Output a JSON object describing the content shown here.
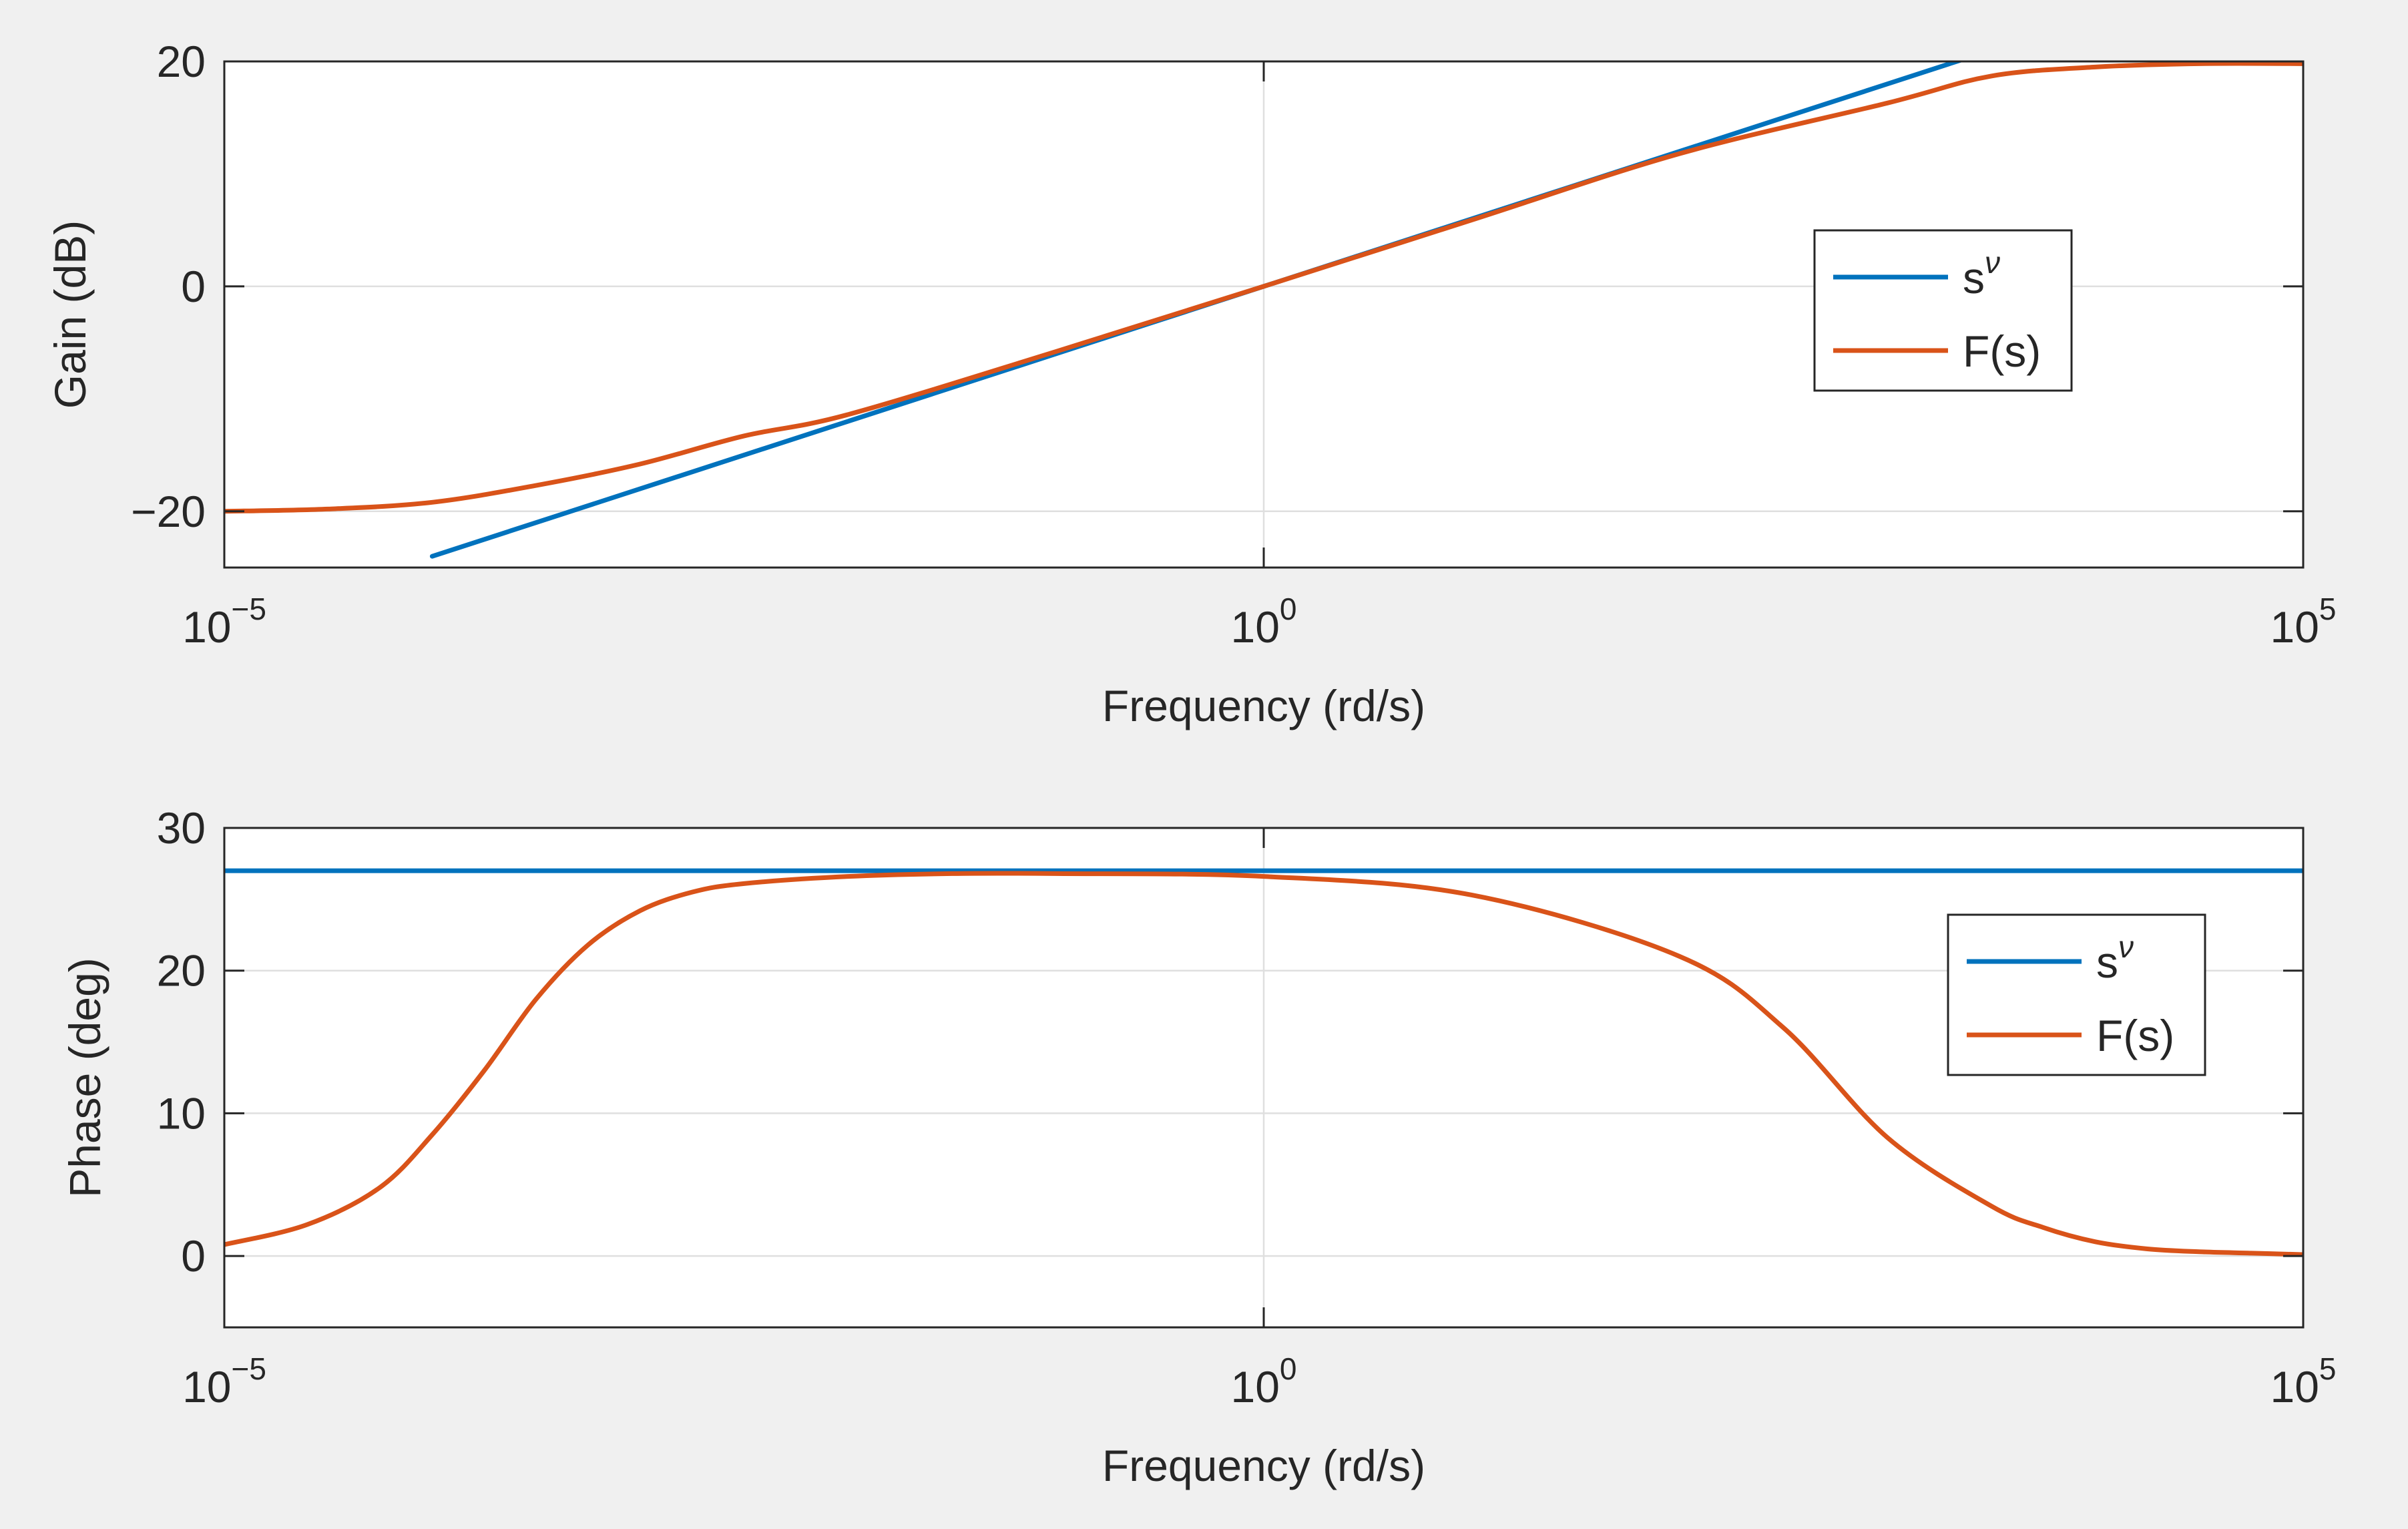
{
  "chart_data": [
    {
      "type": "line",
      "xlabel": "Frequency (rd/s)",
      "ylabel": "Gain (dB)",
      "xscale": "log",
      "xlim": [
        1e-05,
        100000
      ],
      "ylim": [
        -25,
        20
      ],
      "xticks": [
        1e-05,
        1,
        100000
      ],
      "xtick_labels": [
        {
          "base": "10",
          "exp": "−5"
        },
        {
          "base": "10",
          "exp": "0"
        },
        {
          "base": "10",
          "exp": "5"
        }
      ],
      "yticks": [
        -20,
        0,
        20
      ],
      "ytick_labels": [
        "−20",
        "0",
        "20"
      ],
      "grid": true,
      "legend_position": "right",
      "series": [
        {
          "name": "s^ν",
          "label_base": "s",
          "label_sup": "ν",
          "color": "#0072bd",
          "x": [
            0.0001,
            0.001,
            0.01,
            0.1,
            1,
            10,
            100,
            1000,
            10000,
            31623
          ],
          "y": [
            -24,
            -18,
            -12,
            -6,
            0,
            6,
            12,
            18,
            24,
            27
          ]
        },
        {
          "name": "F(s)",
          "label_base": "F(s)",
          "label_sup": "",
          "color": "#d95319",
          "x": [
            1e-05,
            3.16e-05,
            0.0001,
            0.000316,
            0.001,
            0.00316,
            0.01,
            0.1,
            1,
            10,
            100,
            1000,
            3160,
            10000,
            31600,
            100000
          ],
          "y": [
            -20,
            -19.8,
            -19.2,
            -17.7,
            -15.8,
            -13.3,
            -11.4,
            -5.8,
            0,
            5.9,
            11.8,
            16.3,
            18.7,
            19.5,
            19.8,
            19.8
          ]
        }
      ]
    },
    {
      "type": "line",
      "xlabel": "Frequency (rd/s)",
      "ylabel": "Phase (deg)",
      "xscale": "log",
      "xlim": [
        1e-05,
        100000
      ],
      "ylim": [
        -5,
        30
      ],
      "xticks": [
        1e-05,
        1,
        100000
      ],
      "xtick_labels": [
        {
          "base": "10",
          "exp": "−5"
        },
        {
          "base": "10",
          "exp": "0"
        },
        {
          "base": "10",
          "exp": "5"
        }
      ],
      "yticks": [
        0,
        10,
        20,
        30
      ],
      "ytick_labels": [
        "0",
        "10",
        "20",
        "30"
      ],
      "grid": true,
      "legend_position": "right",
      "series": [
        {
          "name": "s^ν",
          "label_base": "s",
          "label_sup": "ν",
          "color": "#0072bd",
          "x": [
            1e-05,
            100000
          ],
          "y": [
            27,
            27
          ]
        },
        {
          "name": "F(s)",
          "label_base": "F(s)",
          "label_sup": "",
          "color": "#d95319",
          "x": [
            1e-05,
            2.5e-05,
            5.6e-05,
            0.0001,
            0.000178,
            0.000316,
            0.000562,
            0.001,
            0.00178,
            0.00316,
            0.01,
            0.0316,
            0.1,
            1,
            10,
            100,
            316,
            1000,
            3160,
            5620,
            10000,
            17800,
            31600,
            56200,
            100000
          ],
          "y": [
            0.8,
            2.2,
            4.8,
            8.5,
            13.0,
            18.0,
            21.8,
            24.2,
            25.5,
            26.1,
            26.6,
            26.8,
            26.8,
            26.6,
            25.3,
            21.0,
            16.0,
            8.3,
            3.5,
            2.0,
            1.0,
            0.5,
            0.3,
            0.2,
            0.1
          ]
        }
      ]
    }
  ]
}
